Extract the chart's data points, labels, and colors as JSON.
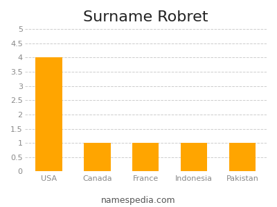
{
  "title": "Surname Robret",
  "categories": [
    "USA",
    "Canada",
    "France",
    "Indonesia",
    "Pakistan"
  ],
  "values": [
    4,
    1,
    1,
    1,
    1
  ],
  "bar_color": "#FFA500",
  "background_color": "#ffffff",
  "ylim": [
    0,
    5
  ],
  "yticks": [
    0,
    0.5,
    1,
    1.5,
    2,
    2.5,
    3,
    3.5,
    4,
    4.5,
    5
  ],
  "grid_color": "#cccccc",
  "title_fontsize": 16,
  "tick_fontsize": 8,
  "footer_text": "namespedia.com",
  "footer_fontsize": 9
}
